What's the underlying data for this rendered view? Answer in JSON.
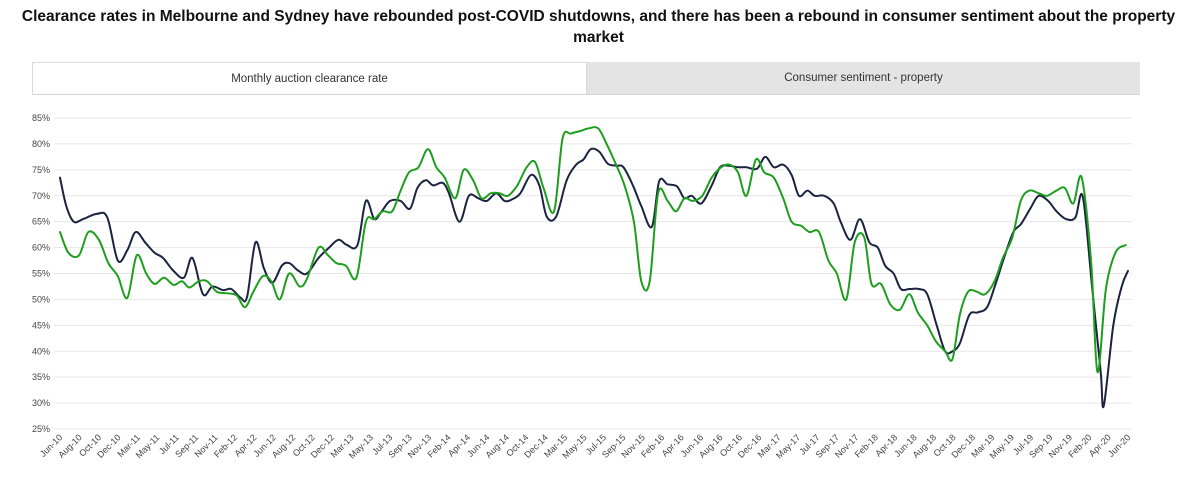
{
  "title": "Clearance rates in Melbourne and Sydney have rebounded post-COVID shutdowns, and there has been a rebound in consumer sentiment about the property market",
  "tabs": [
    {
      "label": "Monthly auction clearance rate",
      "active": true
    },
    {
      "label": "Consumer sentiment - property",
      "active": false
    }
  ],
  "chart_data": {
    "type": "line",
    "title": "",
    "xlabel": "",
    "ylabel": "",
    "ylim": [
      25,
      85
    ],
    "yticks": [
      "25%",
      "30%",
      "35%",
      "40%",
      "45%",
      "50%",
      "55%",
      "60%",
      "65%",
      "70%",
      "75%",
      "80%",
      "85%"
    ],
    "grid": true,
    "x_tick_labels": [
      "Jun-10",
      "Aug-10",
      "Oct-10",
      "Dec-10",
      "Mar-11",
      "May-11",
      "Jul-11",
      "Sep-11",
      "Nov-11",
      "Feb-12",
      "Apr-12",
      "Jun-12",
      "Aug-12",
      "Oct-12",
      "Dec-12",
      "Mar-13",
      "May-13",
      "Jul-13",
      "Sep-13",
      "Nov-13",
      "Feb-14",
      "Apr-14",
      "Jun-14",
      "Aug-14",
      "Oct-14",
      "Dec-14",
      "Mar-15",
      "May-15",
      "Jul-15",
      "Sep-15",
      "Nov-15",
      "Feb-16",
      "Apr-16",
      "Jun-16",
      "Aug-16",
      "Oct-16",
      "Dec-16",
      "Mar-17",
      "May-17",
      "Jul-17",
      "Sep-17",
      "Nov-17",
      "Feb-18",
      "Apr-18",
      "Jun-18",
      "Aug-18",
      "Oct-18",
      "Dec-18",
      "Mar-19",
      "May-19",
      "Jul-19",
      "Sep-19",
      "Nov-19",
      "Feb-20",
      "Apr-20",
      "Jun-20"
    ],
    "series": [
      {
        "color": "#1a2340",
        "points": [
          [
            0,
            73.5
          ],
          [
            0.6,
            68
          ],
          [
            1.3,
            65
          ],
          [
            2.2,
            65.5
          ],
          [
            3.5,
            66.5
          ],
          [
            4.5,
            65.8
          ],
          [
            5.5,
            57.5
          ],
          [
            6.4,
            59.5
          ],
          [
            7.2,
            63
          ],
          [
            8.1,
            61
          ],
          [
            9,
            59
          ],
          [
            9.8,
            58
          ],
          [
            10.8,
            55.5
          ],
          [
            11.8,
            54.2
          ],
          [
            12.6,
            58
          ],
          [
            13.6,
            51
          ],
          [
            14.5,
            52.5
          ],
          [
            15.5,
            51.8
          ],
          [
            16.3,
            52
          ],
          [
            17.2,
            50.3
          ],
          [
            17.8,
            50.5
          ],
          [
            18.6,
            61
          ],
          [
            19.4,
            56
          ],
          [
            20.2,
            53.2
          ],
          [
            21.1,
            56.5
          ],
          [
            21.8,
            57
          ],
          [
            22.7,
            55.5
          ],
          [
            23.5,
            55
          ],
          [
            24.6,
            58
          ],
          [
            25.6,
            60
          ],
          [
            26.5,
            61.5
          ],
          [
            27.3,
            60.5
          ],
          [
            28.3,
            60.5
          ],
          [
            29.1,
            69
          ],
          [
            29.9,
            65.5
          ],
          [
            30.6,
            67
          ],
          [
            31.4,
            69
          ],
          [
            32.4,
            69
          ],
          [
            33.3,
            67.5
          ],
          [
            34,
            71.5
          ],
          [
            34.8,
            73
          ],
          [
            35.5,
            72
          ],
          [
            36.4,
            72.5
          ],
          [
            37,
            70.5
          ],
          [
            38,
            65
          ],
          [
            38.9,
            70
          ],
          [
            39.8,
            69.5
          ],
          [
            40.6,
            69
          ],
          [
            41.5,
            70.5
          ],
          [
            42.3,
            69
          ],
          [
            43,
            69.3
          ],
          [
            43.8,
            70.5
          ],
          [
            44.8,
            74
          ],
          [
            45.6,
            72
          ],
          [
            46.3,
            66
          ],
          [
            47.2,
            66
          ],
          [
            48.2,
            73
          ],
          [
            49.1,
            76
          ],
          [
            49.8,
            77
          ],
          [
            50.5,
            79
          ],
          [
            51.3,
            78.5
          ],
          [
            52.1,
            76.2
          ],
          [
            52.9,
            75.8
          ],
          [
            53.6,
            75.5
          ],
          [
            54.5,
            72
          ],
          [
            55.3,
            68
          ],
          [
            56.3,
            64
          ],
          [
            57,
            72.8
          ],
          [
            57.8,
            72.2
          ],
          [
            58.7,
            71.8
          ],
          [
            59.4,
            69.5
          ],
          [
            60.1,
            70
          ],
          [
            61,
            68.5
          ],
          [
            62,
            72
          ],
          [
            62.8,
            75.5
          ],
          [
            63.6,
            75.8
          ],
          [
            64.5,
            75.5
          ],
          [
            65.3,
            75.5
          ],
          [
            66.3,
            75.2
          ],
          [
            67.1,
            77.5
          ],
          [
            67.9,
            75.5
          ],
          [
            68.8,
            76
          ],
          [
            69.6,
            74
          ],
          [
            70.3,
            70
          ],
          [
            71.1,
            71
          ],
          [
            71.8,
            70
          ],
          [
            72.7,
            70
          ],
          [
            73.6,
            68.5
          ],
          [
            74.3,
            64.8
          ],
          [
            75.2,
            61.5
          ],
          [
            76.1,
            65.5
          ],
          [
            77,
            61
          ],
          [
            77.8,
            60
          ],
          [
            78.5,
            56.5
          ],
          [
            79.3,
            55
          ],
          [
            80,
            52
          ],
          [
            80.8,
            52
          ],
          [
            81.7,
            52
          ],
          [
            82.5,
            51
          ],
          [
            83.4,
            45
          ],
          [
            84.2,
            40
          ],
          [
            84.9,
            40
          ],
          [
            85.6,
            41.5
          ],
          [
            86.5,
            47
          ],
          [
            87.3,
            47.5
          ],
          [
            88.2,
            48.5
          ],
          [
            89,
            53
          ],
          [
            89.8,
            58
          ],
          [
            90.7,
            63
          ],
          [
            91.4,
            64.5
          ],
          [
            92.3,
            67.5
          ],
          [
            93.1,
            70
          ],
          [
            94,
            69
          ],
          [
            94.8,
            67
          ],
          [
            95.7,
            65.5
          ],
          [
            96.6,
            65.8
          ],
          [
            97.3,
            69.8
          ],
          [
            98.2,
            52
          ],
          [
            99,
            36
          ],
          [
            99.3,
            29.5
          ],
          [
            100.2,
            45
          ],
          [
            101,
            52.5
          ],
          [
            101.6,
            55.5
          ]
        ]
      },
      {
        "color": "#1e9e1e",
        "points": [
          [
            0,
            63
          ],
          [
            0.8,
            59
          ],
          [
            1.8,
            58.5
          ],
          [
            2.7,
            63
          ],
          [
            3.7,
            61.5
          ],
          [
            4.6,
            57
          ],
          [
            5.5,
            54.5
          ],
          [
            6.4,
            50.3
          ],
          [
            7.3,
            58.5
          ],
          [
            8.2,
            55
          ],
          [
            9,
            53
          ],
          [
            9.9,
            54.2
          ],
          [
            10.8,
            52.8
          ],
          [
            11.6,
            53.5
          ],
          [
            12.3,
            52.3
          ],
          [
            13.2,
            53.5
          ],
          [
            14,
            53.5
          ],
          [
            14.9,
            51.5
          ],
          [
            15.8,
            51.2
          ],
          [
            16.8,
            50.8
          ],
          [
            17.6,
            48.5
          ],
          [
            18.4,
            51.5
          ],
          [
            19.3,
            54.5
          ],
          [
            20.1,
            53.5
          ],
          [
            20.9,
            50
          ],
          [
            21.8,
            55
          ],
          [
            22.8,
            52.5
          ],
          [
            23.5,
            54
          ],
          [
            24.6,
            60
          ],
          [
            25.5,
            58.5
          ],
          [
            26.3,
            57
          ],
          [
            27.2,
            56.5
          ],
          [
            28.2,
            54.2
          ],
          [
            29.1,
            65
          ],
          [
            29.9,
            65.5
          ],
          [
            30.7,
            67
          ],
          [
            31.6,
            67
          ],
          [
            32.4,
            71
          ],
          [
            33.2,
            74.5
          ],
          [
            34.1,
            75.5
          ],
          [
            35,
            79
          ],
          [
            35.8,
            75.5
          ],
          [
            36.6,
            73.5
          ],
          [
            37.6,
            69.5
          ],
          [
            38.4,
            75
          ],
          [
            39.3,
            73
          ],
          [
            40.1,
            69.5
          ],
          [
            41,
            70.5
          ],
          [
            41.8,
            70.5
          ],
          [
            42.6,
            70
          ],
          [
            43.5,
            72
          ],
          [
            44.4,
            75.5
          ],
          [
            45.2,
            76.5
          ],
          [
            46,
            71.5
          ],
          [
            47,
            67
          ],
          [
            47.8,
            81
          ],
          [
            48.6,
            82
          ],
          [
            49.5,
            82.5
          ],
          [
            50.3,
            83
          ],
          [
            51.2,
            83
          ],
          [
            52,
            80
          ],
          [
            52.9,
            76
          ],
          [
            53.7,
            72
          ],
          [
            54.6,
            65
          ],
          [
            55.3,
            53.5
          ],
          [
            56.1,
            53.5
          ],
          [
            56.9,
            70.5
          ],
          [
            57.8,
            69
          ],
          [
            58.6,
            67
          ],
          [
            59.4,
            69.5
          ],
          [
            60.2,
            69
          ],
          [
            61.1,
            70
          ],
          [
            62,
            73.5
          ],
          [
            62.9,
            75.5
          ],
          [
            63.7,
            76
          ],
          [
            64.5,
            74.5
          ],
          [
            65.3,
            70
          ],
          [
            66.2,
            77
          ],
          [
            67,
            74.5
          ],
          [
            67.9,
            73.5
          ],
          [
            68.8,
            69.5
          ],
          [
            69.6,
            65
          ],
          [
            70.5,
            64.2
          ],
          [
            71.3,
            63
          ],
          [
            72.2,
            63
          ],
          [
            73.1,
            57.5
          ],
          [
            73.9,
            55
          ],
          [
            74.8,
            50
          ],
          [
            75.6,
            61
          ],
          [
            76.5,
            62
          ],
          [
            77.2,
            53
          ],
          [
            78.1,
            53
          ],
          [
            79,
            49
          ],
          [
            79.9,
            48
          ],
          [
            80.8,
            51
          ],
          [
            81.6,
            47.5
          ],
          [
            82.5,
            45
          ],
          [
            83.3,
            42
          ],
          [
            84.2,
            40
          ],
          [
            84.9,
            38.5
          ],
          [
            85.6,
            47
          ],
          [
            86.4,
            51.5
          ],
          [
            87.2,
            51.5
          ],
          [
            88,
            51
          ],
          [
            88.9,
            53.5
          ],
          [
            89.7,
            58
          ],
          [
            90.6,
            62
          ],
          [
            91.4,
            69
          ],
          [
            92.2,
            71
          ],
          [
            93.1,
            70.5
          ],
          [
            93.9,
            70
          ],
          [
            94.8,
            71
          ],
          [
            95.6,
            71.5
          ],
          [
            96.4,
            68.5
          ],
          [
            97.2,
            73.5
          ],
          [
            98.1,
            57
          ],
          [
            98.7,
            36
          ],
          [
            99.5,
            52
          ],
          [
            100.4,
            59
          ],
          [
            101.4,
            60.5
          ]
        ]
      }
    ]
  }
}
